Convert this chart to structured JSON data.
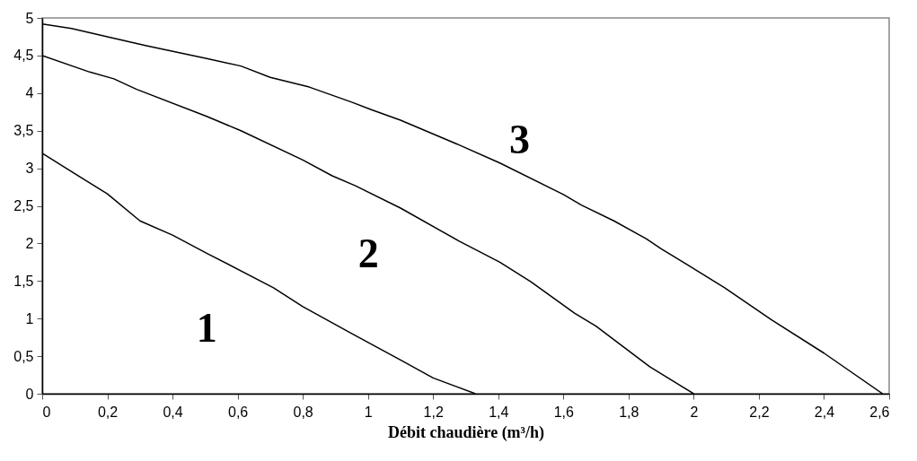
{
  "chart_data": {
    "type": "line",
    "xlabel": "Débit chaudière (m³/h)",
    "xlim": [
      0,
      2.6
    ],
    "xticks": [
      0,
      {
        "value": 0.2,
        "label": "0,2"
      },
      {
        "value": 0.4,
        "label": "0,4"
      },
      {
        "value": 0.6,
        "label": "0,6"
      },
      {
        "value": 0.8,
        "label": "0,8"
      },
      1,
      {
        "value": 1.2,
        "label": "1,2"
      },
      {
        "value": 1.4,
        "label": "1,4"
      },
      {
        "value": 1.6,
        "label": "1,6"
      },
      {
        "value": 1.8,
        "label": "1,8"
      },
      2,
      {
        "value": 2.2,
        "label": "2,2"
      },
      {
        "value": 2.4,
        "label": "2,4"
      },
      {
        "value": 2.6,
        "label": "2,6"
      }
    ],
    "ylim": [
      0,
      5
    ],
    "yticks": [
      0,
      {
        "value": 0.5,
        "label": "0,5"
      },
      1,
      {
        "value": 1.5,
        "label": "1,5"
      },
      2,
      {
        "value": 2.5,
        "label": "2,5"
      },
      3,
      {
        "value": 3.5,
        "label": "3,5"
      },
      4,
      {
        "value": 4.5,
        "label": "4,5"
      },
      5
    ],
    "grid": false,
    "legend": false,
    "marker": "none",
    "line_style": "solid",
    "series": [
      {
        "name": "1",
        "color": "#000000",
        "x": [
          0,
          0.11,
          0.2,
          0.3,
          0.4,
          0.505,
          0.71,
          0.8,
          0.95,
          1.1,
          1.2,
          1.33
        ],
        "values": [
          3.2,
          2.9,
          2.66,
          2.3,
          2.11,
          1.87,
          1.41,
          1.16,
          0.8,
          0.45,
          0.21,
          0
        ]
      },
      {
        "name": "2",
        "color": "#000000",
        "x": [
          0,
          0.146,
          0.22,
          0.29,
          0.505,
          0.61,
          0.8,
          0.89,
          0.96,
          1.1,
          1.28,
          1.405,
          1.5,
          1.635,
          1.7,
          1.865,
          2.0
        ],
        "values": [
          4.5,
          4.28,
          4.19,
          4.05,
          3.69,
          3.5,
          3.11,
          2.9,
          2.77,
          2.47,
          2.03,
          1.75,
          1.49,
          1.07,
          0.9,
          0.36,
          0
        ]
      },
      {
        "name": "3",
        "color": "#000000",
        "x": [
          0,
          0.09,
          0.2,
          0.32,
          0.505,
          0.61,
          0.7,
          0.82,
          0.95,
          1.01,
          1.1,
          1.28,
          1.405,
          1.6,
          1.655,
          1.755,
          1.855,
          1.9,
          2.095,
          2.24,
          2.4,
          2.58
        ],
        "values": [
          4.92,
          4.86,
          4.75,
          4.63,
          4.46,
          4.36,
          4.21,
          4.08,
          3.88,
          3.78,
          3.64,
          3.31,
          3.07,
          2.65,
          2.51,
          2.3,
          2.06,
          1.93,
          1.41,
          0.98,
          0.54,
          0
        ]
      }
    ]
  }
}
